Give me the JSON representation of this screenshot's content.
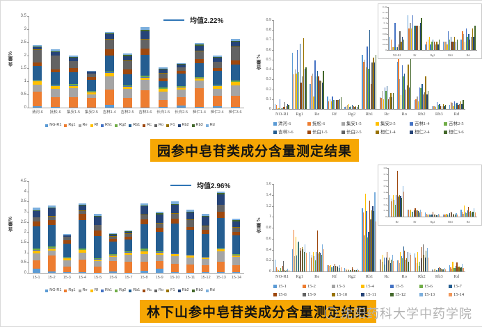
{
  "page": {
    "background": "#ffffff"
  },
  "titles": {
    "top": "园参中皂苷类成分含量测定结果",
    "bottom": "林下山参中皂苷类成分含量测定结果",
    "highlight_color": "#F6A704",
    "text_color": "#141414"
  },
  "watermark": {
    "text": "沈阳药科大学中药学院",
    "color": "#B3B3B3",
    "logo_icon": "smiley-face"
  },
  "palette14": [
    "#5B9BD5",
    "#ED7D31",
    "#A5A5A5",
    "#FFC000",
    "#4472C4",
    "#70AD47",
    "#255E91",
    "#9E480E",
    "#636363",
    "#997300",
    "#264478",
    "#43682B",
    "#7CAFDD",
    "#F1975A"
  ],
  "chart_data": [
    {
      "id": "garden-stacked",
      "type": "bar",
      "stacked": true,
      "title": "",
      "xlabel": "",
      "ylabel": "含量%",
      "ylim": [
        0,
        3.5
      ],
      "ytick": 0.5,
      "grid": false,
      "legend_position": "bottom",
      "mean_label": "均值2.22%",
      "mean_line_color": "#2E75B6",
      "series_labels": [
        "NG-R1",
        "Rg1",
        "Re",
        "Rf",
        "Rh1",
        "Rg2",
        "Rb1",
        "Rc",
        "Ro",
        "F1",
        "Rb2",
        "Rb3",
        "Rd"
      ],
      "colors": [
        "#5B9BD5",
        "#ED7D31",
        "#A5A5A5",
        "#FFC000",
        "#4472C4",
        "#70AD47",
        "#255E91",
        "#9E480E",
        "#636363",
        "#997300",
        "#264478",
        "#43682B",
        "#7CAFDD"
      ],
      "categories": [
        "清河-6",
        "抚松-6",
        "集安1-5",
        "集安2-5",
        "吉林1-4",
        "吉林2-5",
        "吉林3-6",
        "长白1-5",
        "长白2-5",
        "桓仁1-4",
        "桓仁2-4",
        "桓仁3-6"
      ],
      "bars": [
        [
          0.05,
          0.57,
          0.25,
          0.13,
          0.03,
          0.02,
          0.55,
          0.12,
          0.48,
          0.02,
          0.09,
          0.03,
          0.04
        ],
        [
          0.04,
          0.35,
          0.34,
          0.08,
          0.03,
          0.03,
          0.48,
          0.11,
          0.52,
          0.02,
          0.12,
          0.03,
          0.07
        ],
        [
          0.01,
          0.4,
          0.32,
          0.1,
          0.03,
          0.04,
          0.45,
          0.16,
          0.26,
          0.02,
          0.12,
          0.03,
          0.06
        ],
        [
          0.01,
          0.36,
          0.13,
          0.08,
          0.02,
          0.05,
          0.42,
          0.1,
          0.12,
          0.02,
          0.06,
          0.02,
          0.03
        ],
        [
          0.1,
          0.6,
          0.49,
          0.13,
          0.03,
          0.02,
          0.63,
          0.22,
          0.38,
          0.02,
          0.19,
          0.04,
          0.05
        ],
        [
          0.01,
          0.37,
          0.33,
          0.09,
          0.03,
          0.03,
          0.41,
          0.18,
          0.33,
          0.02,
          0.17,
          0.04,
          0.05
        ],
        [
          0.01,
          0.66,
          0.39,
          0.09,
          0.03,
          0.04,
          0.8,
          0.23,
          0.36,
          0.02,
          0.29,
          0.05,
          0.1
        ],
        [
          0.02,
          0.27,
          0.33,
          0.09,
          0.02,
          0.03,
          0.25,
          0.1,
          0.2,
          0.02,
          0.13,
          0.03,
          0.04
        ],
        [
          0.07,
          0.33,
          0.29,
          0.09,
          0.02,
          0.02,
          0.47,
          0.12,
          0.12,
          0.02,
          0.1,
          0.02,
          0.04
        ],
        [
          0.03,
          0.72,
          0.28,
          0.09,
          0.02,
          0.03,
          0.52,
          0.16,
          0.3,
          0.02,
          0.2,
          0.04,
          0.05
        ],
        [
          0.05,
          0.41,
          0.27,
          0.1,
          0.02,
          0.02,
          0.53,
          0.12,
          0.22,
          0.02,
          0.15,
          0.03,
          0.05
        ],
        [
          0.04,
          0.42,
          0.39,
          0.12,
          0.02,
          0.04,
          0.61,
          0.16,
          0.51,
          0.02,
          0.18,
          0.04,
          0.09
        ]
      ]
    },
    {
      "id": "garden-grouped",
      "type": "bar",
      "stacked": false,
      "title": "",
      "xlabel": "",
      "ylabel": "含量%",
      "ylim": [
        0,
        0.9
      ],
      "ytick": 0.1,
      "grid": false,
      "legend_position": "bottom",
      "legend_rows": 2,
      "categories": [
        "NO-R1",
        "Rg1",
        "Re",
        "Rf",
        "Rg2",
        "Rb1",
        "Rc",
        "Ro",
        "Rb2",
        "Rb3",
        "Rd"
      ],
      "series": [
        {
          "name": "清河-6",
          "color": "#5B9BD5",
          "values": [
            0.05,
            0.57,
            0.25,
            0.13,
            0.02,
            0.55,
            0.12,
            0.48,
            0.09,
            0.03,
            0.04
          ]
        },
        {
          "name": "抚松-6",
          "color": "#ED7D31",
          "values": [
            0.04,
            0.35,
            0.34,
            0.08,
            0.03,
            0.48,
            0.11,
            0.52,
            0.1,
            0.03,
            0.07
          ]
        },
        {
          "name": "集安1-5",
          "color": "#A5A5A5",
          "values": [
            0.01,
            0.4,
            0.36,
            0.1,
            0.04,
            0.5,
            0.18,
            0.3,
            0.13,
            0.03,
            0.06
          ]
        },
        {
          "name": "集安2-5",
          "color": "#FFC000",
          "values": [
            0.01,
            0.36,
            0.13,
            0.08,
            0.05,
            0.42,
            0.1,
            0.14,
            0.08,
            0.02,
            0.03
          ]
        },
        {
          "name": "吉林1-4",
          "color": "#4472C4",
          "values": [
            0.1,
            0.6,
            0.49,
            0.13,
            0.02,
            0.63,
            0.22,
            0.44,
            0.22,
            0.07,
            0.08
          ]
        },
        {
          "name": "吉林2-5",
          "color": "#70AD47",
          "values": [
            0.01,
            0.37,
            0.33,
            0.09,
            0.03,
            0.41,
            0.18,
            0.33,
            0.21,
            0.04,
            0.05
          ]
        },
        {
          "name": "吉林3-6",
          "color": "#255E91",
          "values": [
            0.01,
            0.66,
            0.39,
            0.09,
            0.04,
            0.8,
            0.23,
            0.36,
            0.25,
            0.05,
            0.06
          ]
        },
        {
          "name": "长白1-5",
          "color": "#9E480E",
          "values": [
            0.02,
            0.27,
            0.33,
            0.09,
            0.03,
            0.25,
            0.1,
            0.2,
            0.15,
            0.03,
            0.04
          ]
        },
        {
          "name": "长白2-5",
          "color": "#636363",
          "values": [
            0.07,
            0.33,
            0.29,
            0.09,
            0.02,
            0.47,
            0.12,
            0.24,
            0.17,
            0.03,
            0.05
          ]
        },
        {
          "name": "桓仁1-4",
          "color": "#997300",
          "values": [
            0.03,
            0.72,
            0.28,
            0.09,
            0.03,
            0.52,
            0.16,
            0.45,
            0.33,
            0.05,
            0.08
          ]
        },
        {
          "name": "桓仁2-4",
          "color": "#264478",
          "values": [
            0.05,
            0.41,
            0.27,
            0.1,
            0.02,
            0.47,
            0.12,
            0.22,
            0.15,
            0.03,
            0.05
          ]
        },
        {
          "name": "桓仁3-6",
          "color": "#43682B",
          "values": [
            0.04,
            0.42,
            0.39,
            0.12,
            0.04,
            0.55,
            0.16,
            0.51,
            0.18,
            0.04,
            0.09
          ]
        }
      ],
      "inset": {
        "categories": [
          "NO-R1",
          "Rf",
          "Rg2",
          "Rb3",
          "Rd"
        ],
        "ylim": [
          0,
          0.16
        ],
        "ytick": 0.02
      }
    },
    {
      "id": "forest-stacked",
      "type": "bar",
      "stacked": true,
      "title": "",
      "xlabel": "",
      "ylabel": "含量%",
      "ylim": [
        0,
        4.5
      ],
      "ytick": 0.5,
      "grid": false,
      "legend_position": "bottom",
      "mean_label": "均值2.96%",
      "mean_line_color": "#2E75B6",
      "series_labels": [
        "NG-R1",
        "Rg1",
        "Re",
        "Rf",
        "Rh1",
        "Rg2",
        "Rb1",
        "Rc",
        "Ro",
        "F1",
        "Rb2",
        "Rb3",
        "Rd"
      ],
      "colors": [
        "#5B9BD5",
        "#ED7D31",
        "#A5A5A5",
        "#FFC000",
        "#4472C4",
        "#70AD47",
        "#255E91",
        "#9E480E",
        "#636363",
        "#997300",
        "#264478",
        "#43682B",
        "#7CAFDD"
      ],
      "categories": [
        "15-1",
        "15-2",
        "15-3",
        "15-4",
        "15-5",
        "15-6",
        "15-7",
        "15-8",
        "15-9",
        "15-10",
        "15-11",
        "15-12",
        "15-13",
        "15-14"
      ],
      "bars": [
        [
          0.21,
          0.41,
          0.35,
          0.12,
          0.03,
          0.07,
          1.1,
          0.23,
          0.2,
          0.02,
          0.3,
          0.04,
          0.12
        ],
        [
          0.08,
          0.76,
          0.25,
          0.12,
          0.03,
          0.05,
          1.08,
          0.21,
          0.2,
          0.02,
          0.39,
          0.03,
          0.08
        ],
        [
          0.04,
          0.28,
          0.3,
          0.1,
          0.03,
          0.03,
          0.66,
          0.18,
          0.15,
          0.02,
          0.05,
          0.02,
          0.04
        ],
        [
          0.02,
          0.63,
          0.35,
          0.11,
          0.03,
          0.04,
          1.42,
          0.3,
          0.15,
          0.02,
          0.25,
          0.03,
          0.05
        ],
        [
          0.01,
          0.29,
          0.28,
          0.08,
          0.03,
          0.03,
          1.1,
          0.25,
          0.28,
          0.02,
          0.4,
          0.04,
          0.09
        ],
        [
          0.06,
          0.53,
          0.2,
          0.08,
          0.02,
          0.02,
          0.62,
          0.13,
          0.12,
          0.02,
          0.08,
          0.03,
          0.04
        ],
        [
          0.01,
          0.54,
          0.35,
          0.1,
          0.02,
          0.03,
          0.6,
          0.14,
          0.12,
          0.02,
          0.1,
          0.03,
          0.04
        ],
        [
          0.1,
          0.43,
          0.4,
          0.14,
          0.03,
          0.08,
          1.2,
          0.26,
          0.2,
          0.02,
          0.4,
          0.05,
          0.09
        ],
        [
          0.19,
          0.38,
          0.33,
          0.1,
          0.03,
          0.04,
          0.95,
          0.2,
          0.21,
          0.02,
          0.43,
          0.04,
          0.08
        ],
        [
          0.02,
          0.44,
          0.35,
          0.1,
          0.03,
          0.03,
          1.45,
          0.25,
          0.24,
          0.02,
          0.4,
          0.05,
          0.12
        ],
        [
          0.01,
          0.41,
          0.34,
          0.09,
          0.03,
          0.02,
          1.2,
          0.15,
          0.36,
          0.02,
          0.33,
          0.04,
          0.1
        ],
        [
          0.02,
          0.35,
          0.31,
          0.07,
          0.03,
          0.02,
          1.1,
          0.21,
          0.18,
          0.02,
          0.45,
          0.04,
          0.1
        ],
        [
          0.05,
          0.5,
          0.5,
          0.11,
          0.03,
          0.05,
          1.45,
          0.3,
          0.34,
          0.02,
          0.5,
          0.06,
          0.09
        ],
        [
          0.02,
          0.34,
          0.41,
          0.08,
          0.03,
          0.03,
          0.92,
          0.19,
          0.2,
          0.02,
          0.3,
          0.04,
          0.07
        ]
      ]
    },
    {
      "id": "forest-grouped",
      "type": "bar",
      "stacked": false,
      "title": "",
      "xlabel": "",
      "ylabel": "含量%",
      "ylim": [
        0,
        1.6
      ],
      "ytick": 0.2,
      "grid": false,
      "legend_position": "bottom",
      "legend_rows": 2,
      "categories": [
        "NO-R1",
        "Rg1",
        "Re",
        "Rf",
        "Rg2",
        "Rb1",
        "Rc",
        "Ro",
        "Rb2",
        "Rb3",
        "Rd"
      ],
      "series": [
        {
          "name": "15-1",
          "color": "#5B9BD5",
          "values": [
            0.21,
            0.41,
            0.35,
            0.12,
            0.07,
            1.16,
            0.23,
            0.2,
            0.33,
            0.04,
            0.12
          ]
        },
        {
          "name": "15-2",
          "color": "#ED7D31",
          "values": [
            0.08,
            0.76,
            0.25,
            0.12,
            0.05,
            1.08,
            0.21,
            0.2,
            0.26,
            0.03,
            0.08
          ]
        },
        {
          "name": "15-3",
          "color": "#A5A5A5",
          "values": [
            0.04,
            0.28,
            0.3,
            0.1,
            0.03,
            0.66,
            0.18,
            0.15,
            0.15,
            0.04,
            0.05
          ]
        },
        {
          "name": "15-4",
          "color": "#FFC000",
          "values": [
            0.02,
            0.63,
            0.35,
            0.11,
            0.04,
            1.42,
            0.3,
            0.35,
            0.35,
            0.05,
            0.18
          ]
        },
        {
          "name": "15-5",
          "color": "#4472C4",
          "values": [
            0.01,
            0.29,
            0.28,
            0.08,
            0.03,
            1.1,
            0.25,
            0.28,
            0.1,
            0.03,
            0.07
          ]
        },
        {
          "name": "15-6",
          "color": "#70AD47",
          "values": [
            0.06,
            0.53,
            0.2,
            0.08,
            0.02,
            0.62,
            0.13,
            0.24,
            0.18,
            0.03,
            0.06
          ]
        },
        {
          "name": "15-7",
          "color": "#255E91",
          "values": [
            0.01,
            0.54,
            0.35,
            0.1,
            0.03,
            0.72,
            0.26,
            0.46,
            0.24,
            0.06,
            0.1
          ]
        },
        {
          "name": "15-8",
          "color": "#9E480E",
          "values": [
            0.1,
            0.43,
            0.75,
            0.14,
            0.08,
            1.3,
            0.36,
            0.38,
            0.45,
            0.08,
            0.16
          ]
        },
        {
          "name": "15-9",
          "color": "#636363",
          "values": [
            0.19,
            0.38,
            0.33,
            0.1,
            0.04,
            0.95,
            0.2,
            0.21,
            0.5,
            0.07,
            0.08
          ]
        },
        {
          "name": "15-10",
          "color": "#997300",
          "values": [
            0.02,
            0.44,
            0.35,
            0.1,
            0.03,
            1.12,
            0.25,
            0.24,
            0.3,
            0.05,
            0.09
          ]
        },
        {
          "name": "15-11",
          "color": "#264478",
          "values": [
            0.01,
            0.41,
            0.34,
            0.09,
            0.02,
            1.2,
            0.15,
            0.36,
            0.25,
            0.04,
            0.07
          ]
        },
        {
          "name": "15-12",
          "color": "#43682B",
          "values": [
            0.02,
            0.35,
            0.31,
            0.07,
            0.02,
            1.1,
            0.21,
            0.18,
            0.38,
            0.04,
            0.08
          ]
        },
        {
          "name": "15-13",
          "color": "#7CAFDD",
          "values": [
            0.05,
            0.5,
            0.5,
            0.11,
            0.05,
            1.45,
            0.3,
            0.34,
            0.43,
            0.06,
            0.14
          ]
        },
        {
          "name": "15-14",
          "color": "#F1975A",
          "values": [
            0.02,
            0.34,
            0.41,
            0.08,
            0.03,
            0.92,
            0.19,
            0.3,
            0.26,
            0.04,
            0.07
          ]
        }
      ],
      "inset": {
        "categories": [
          "Re",
          "Rf",
          "Rg2",
          "Rb3",
          "Rd"
        ],
        "ylim": [
          0,
          0.8
        ],
        "ytick": 0.1
      }
    }
  ]
}
